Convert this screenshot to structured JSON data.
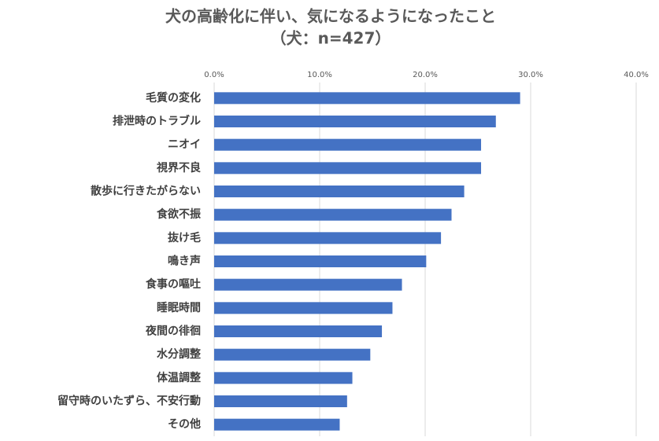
{
  "chart_data": {
    "type": "bar",
    "orientation": "horizontal",
    "title": "犬の高齢化に伴い、気になるようになったこと",
    "subtitle": "（犬：n=427）",
    "categories": [
      "毛質の変化",
      "排泄時のトラブル",
      "ニオイ",
      "視界不良",
      "散歩に行きたがらない",
      "食欲不振",
      "抜け毛",
      "鳴き声",
      "食事の嘔吐",
      "睡眠時間",
      "夜間の徘徊",
      "水分調整",
      "体温調整",
      "留守時のいたずら、不安行動",
      "その他"
    ],
    "values": [
      29.0,
      26.7,
      25.3,
      25.3,
      23.7,
      22.5,
      21.5,
      20.1,
      17.8,
      16.9,
      15.9,
      14.8,
      13.1,
      12.6,
      11.9
    ],
    "color": "#4472c4",
    "xlim": [
      0,
      40
    ],
    "xticks": [
      {
        "value": 0,
        "label": "0.0%"
      },
      {
        "value": 10,
        "label": "10.0%"
      },
      {
        "value": 20,
        "label": "20.0%"
      },
      {
        "value": 30,
        "label": "30.0%"
      },
      {
        "value": 40,
        "label": "40.0%"
      }
    ],
    "grid": true
  }
}
